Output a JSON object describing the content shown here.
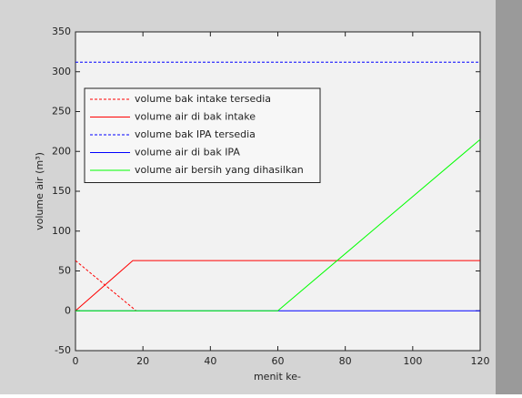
{
  "chart_data": {
    "type": "line",
    "xlabel": "menit ke-",
    "ylabel": "volume air (m³)",
    "xlim": [
      0,
      120
    ],
    "xticks": [
      0,
      20,
      40,
      60,
      80,
      100,
      120
    ],
    "ylim": [
      -50,
      350
    ],
    "yticks": [
      -50,
      0,
      50,
      100,
      150,
      200,
      250,
      300,
      350
    ],
    "grid": false,
    "legend": "upper left",
    "series": [
      {
        "name": "volume bak intake tersedia",
        "color": "#ff0000",
        "dash": true,
        "x": [
          0,
          18
        ],
        "values": [
          63,
          0
        ]
      },
      {
        "name": "volume air di bak intake",
        "color": "#ff0000",
        "dash": false,
        "x": [
          0,
          17,
          120
        ],
        "values": [
          0,
          63,
          63
        ]
      },
      {
        "name": "volume bak IPA tersedia",
        "color": "#0000ff",
        "dash": true,
        "x": [
          0,
          120
        ],
        "values": [
          312,
          312
        ]
      },
      {
        "name": "volume air di bak IPA",
        "color": "#0000ff",
        "dash": false,
        "x": [
          0,
          120
        ],
        "values": [
          0,
          0
        ]
      },
      {
        "name": "volume air bersih yang dihasilkan",
        "color": "#00ff00",
        "dash": false,
        "x": [
          0,
          60,
          120
        ],
        "values": [
          0,
          0,
          215
        ]
      }
    ]
  }
}
